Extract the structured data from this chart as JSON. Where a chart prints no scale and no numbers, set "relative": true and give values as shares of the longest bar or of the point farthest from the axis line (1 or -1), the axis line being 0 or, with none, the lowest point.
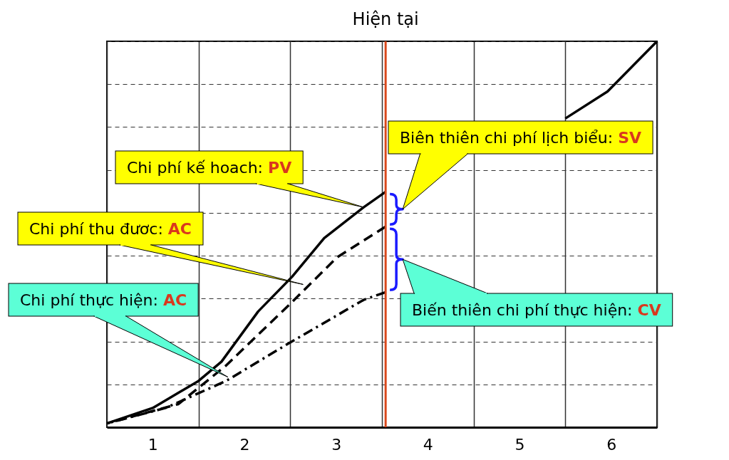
{
  "chart_data": {
    "type": "line",
    "relative": true,
    "grid": true,
    "xlim": [
      0,
      6
    ],
    "xticks": [
      {
        "value": 0,
        "label": null
      },
      {
        "value": 0.5,
        "label": "1"
      },
      {
        "value": 1,
        "label": null
      },
      {
        "value": 1.5,
        "label": "2"
      },
      {
        "value": 2,
        "label": null
      },
      {
        "value": 2.5,
        "label": "3"
      },
      {
        "value": 3,
        "label": null
      },
      {
        "value": 3.5,
        "label": "4"
      },
      {
        "value": 4,
        "label": null
      },
      {
        "value": 4.5,
        "label": "5"
      },
      {
        "value": 5,
        "label": null
      },
      {
        "value": 5.5,
        "label": "6"
      },
      {
        "value": 6,
        "label": null
      }
    ],
    "series": [
      {
        "color": "#000000",
        "line_style": "solid",
        "x": [
          0,
          0.5,
          1,
          1.25,
          1.65,
          2.02,
          2.37,
          2.8,
          3.04,
          3.53,
          4.3,
          5,
          5.46,
          6
        ],
        "values": [
          0.01,
          0.05,
          0.12,
          0.17,
          0.3,
          0.39,
          0.49,
          0.57,
          0.61,
          null,
          null,
          0.8,
          0.87,
          1
        ]
      },
      {
        "color": "#000000",
        "line_style": "dashed",
        "x": [
          0,
          0.78,
          1.3,
          2,
          2.51,
          3.04
        ],
        "values": [
          0.01,
          0.06,
          0.16,
          0.32,
          0.44,
          0.52
        ]
      },
      {
        "color": "#000000",
        "line_style": "dashdot",
        "x": [
          0,
          0.64,
          1.3,
          1.93,
          2.8,
          3.04
        ],
        "values": [
          0.01,
          0.05,
          0.12,
          0.21,
          0.33,
          0.35
        ]
      }
    ],
    "ref_lines": [
      {
        "axis": "x",
        "value": 3.04,
        "label": "Hiện tại",
        "color": "#d9481c"
      }
    ],
    "annotations": [
      {
        "text": "Chi phí kế hoach: PV",
        "x": 2.8,
        "y": 0.57
      },
      {
        "text": "Chi phí thu đươc: AC",
        "x": 2.14,
        "y": 0.37
      },
      {
        "text": "Chi phí thực hiện: AC",
        "x": 1.32,
        "y": 0.13
      },
      "Biên thiên chi phí lịch biểu: SV",
      "Biến thiên chi phí thực hiện: CV"
    ]
  }
}
